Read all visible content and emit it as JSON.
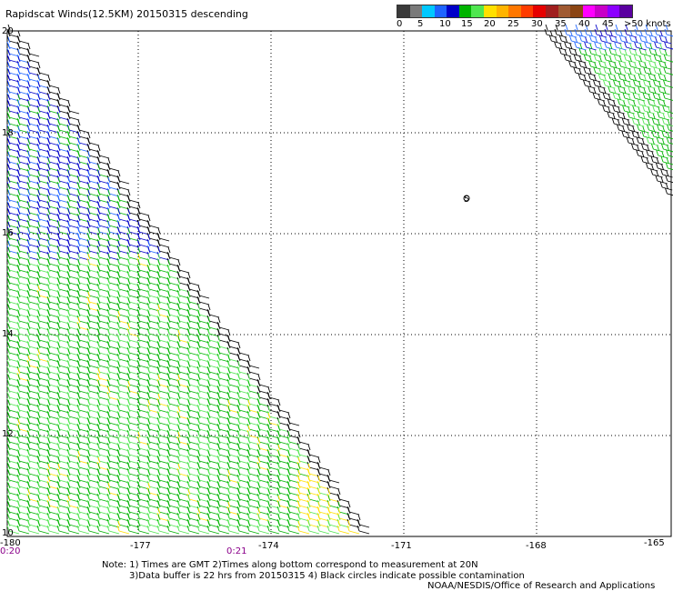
{
  "title": "Rapidscat Winds(12.5KM) 20150315 descending",
  "legend": {
    "labels": [
      "0",
      "5",
      "10",
      "15",
      "20",
      "25",
      "30",
      "35",
      "40",
      "45",
      ">50 knots"
    ],
    "colors": [
      "#3a3a3a",
      "#7a7a7a",
      "#00c8ff",
      "#1e64ff",
      "#0000c8",
      "#00b400",
      "#50e650",
      "#ffe000",
      "#ffb400",
      "#ff7800",
      "#ff3c00",
      "#e60000",
      "#a01e1e",
      "#a05a32",
      "#8b4513",
      "#ff00ff",
      "#c800c8",
      "#8c00ff",
      "#5a00a0"
    ]
  },
  "map": {
    "lon_ticks": [
      "-180",
      "-177",
      "-174",
      "-171",
      "-168",
      "-165"
    ],
    "lat_ticks": [
      "20",
      "18",
      "16",
      "14",
      "12",
      "10"
    ],
    "time_labels": [
      "0:20",
      "0:21"
    ],
    "station_label": "5"
  },
  "notes": {
    "line1": "Note: 1) Times are GMT 2)Times along bottom correspond to measurement at 20N",
    "line2": "3)Data buffer is 22 hrs from 20150315 4) Black circles indicate possible contamination"
  },
  "credit": "NOAA/NESDIS/Office of Research and Applications"
}
